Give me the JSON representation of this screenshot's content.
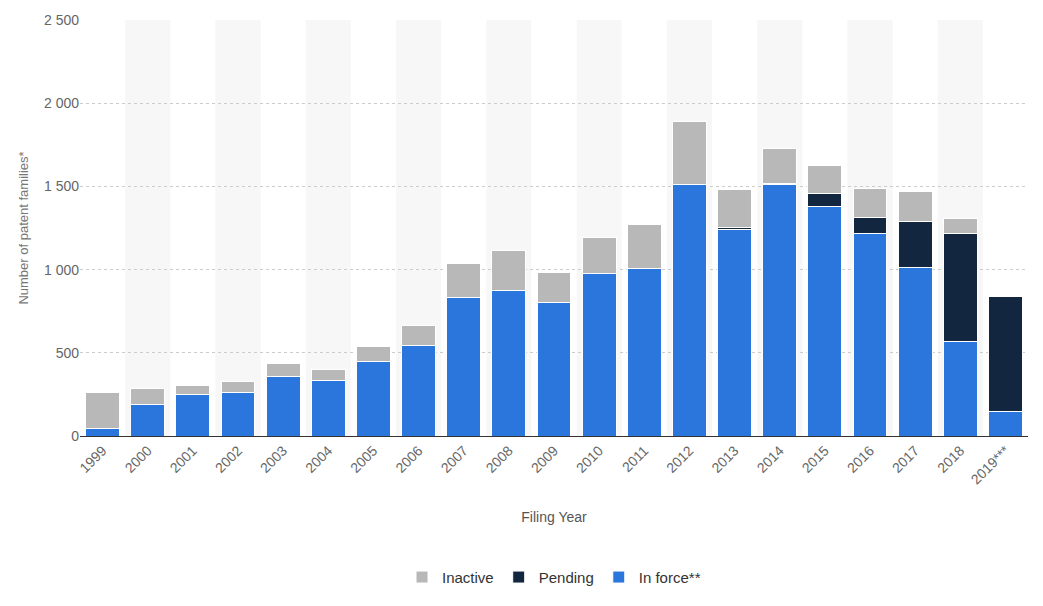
{
  "chart_data": {
    "type": "bar",
    "stacked": true,
    "grid": true,
    "legend": "bottom",
    "x_label": "Filing Year",
    "y_label": "Number of patent families*",
    "categories": [
      "1999",
      "2000",
      "2001",
      "2002",
      "2003",
      "2004",
      "2005",
      "2006",
      "2007",
      "2008",
      "2009",
      "2010",
      "2011",
      "2012",
      "2013",
      "2014",
      "2015",
      "2016",
      "2017",
      "2018",
      "2019***"
    ],
    "series": [
      {
        "name": "In force**",
        "color": "#2a76dd",
        "values": [
          45,
          190,
          250,
          260,
          360,
          335,
          445,
          545,
          830,
          875,
          800,
          975,
          1005,
          1510,
          1240,
          1510,
          1380,
          1215,
          1015,
          565,
          145
        ]
      },
      {
        "name": "Pending",
        "color": "#12263f",
        "values": [
          0,
          0,
          0,
          0,
          0,
          0,
          0,
          0,
          0,
          0,
          0,
          0,
          0,
          0,
          15,
          5,
          80,
          100,
          275,
          650,
          695
        ]
      },
      {
        "name": "Inactive",
        "color": "#b8b8b8",
        "values": [
          215,
          95,
          55,
          65,
          75,
          65,
          90,
          120,
          205,
          240,
          185,
          220,
          265,
          380,
          225,
          210,
          165,
          175,
          180,
          90,
          0
        ]
      }
    ],
    "ylim": [
      0,
      2500
    ],
    "yticks": [
      0,
      500,
      {
        "value": 1000,
        "label": "1 000"
      },
      {
        "value": 1500,
        "label": "1 500"
      },
      {
        "value": 2000,
        "label": "2 000"
      },
      {
        "value": 2500,
        "label": "2 500"
      }
    ]
  }
}
